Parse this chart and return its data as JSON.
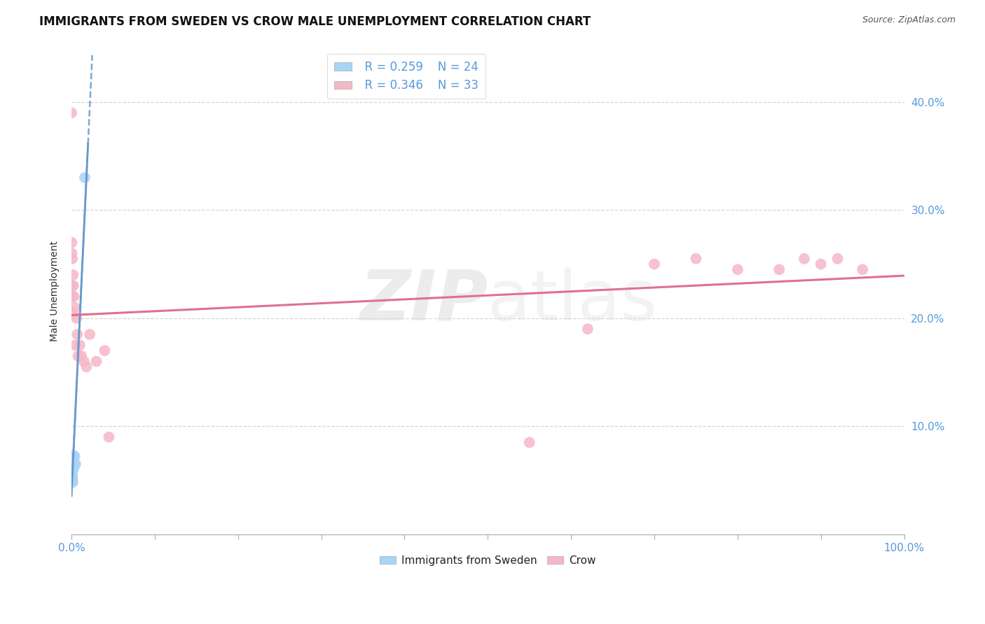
{
  "title": "IMMIGRANTS FROM SWEDEN VS CROW MALE UNEMPLOYMENT CORRELATION CHART",
  "source": "Source: ZipAtlas.com",
  "ylabel": "Male Unemployment",
  "xlim": [
    0.0,
    1.0
  ],
  "ylim": [
    0.0,
    0.45
  ],
  "grid_color": "#cccccc",
  "background_color": "#ffffff",
  "sweden_color": "#a8d4f5",
  "crow_color": "#f5b8c8",
  "sweden_line_color": "#6699cc",
  "crow_line_color": "#e07090",
  "legend_text_color": "#5599dd",
  "legend_r_sweden": "R = 0.259",
  "legend_n_sweden": "N = 24",
  "legend_r_crow": "R = 0.346",
  "legend_n_crow": "N = 33",
  "title_fontsize": 12,
  "tick_fontsize": 11,
  "ylabel_fontsize": 10,
  "sweden_x": [
    0.0002,
    0.0003,
    0.0004,
    0.0005,
    0.0006,
    0.0007,
    0.0008,
    0.0009,
    0.001,
    0.0011,
    0.0012,
    0.0013,
    0.0015,
    0.0016,
    0.0017,
    0.0018,
    0.002,
    0.0022,
    0.0025,
    0.003,
    0.0035,
    0.004,
    0.005,
    0.016
  ],
  "sweden_y": [
    0.068,
    0.065,
    0.063,
    0.061,
    0.059,
    0.057,
    0.055,
    0.054,
    0.053,
    0.052,
    0.051,
    0.05,
    0.048,
    0.07,
    0.066,
    0.062,
    0.06,
    0.073,
    0.067,
    0.065,
    0.063,
    0.072,
    0.065,
    0.33
  ],
  "crow_x": [
    0.0002,
    0.0004,
    0.0006,
    0.0008,
    0.001,
    0.0012,
    0.0015,
    0.002,
    0.0025,
    0.003,
    0.004,
    0.005,
    0.006,
    0.007,
    0.008,
    0.01,
    0.012,
    0.015,
    0.018,
    0.022,
    0.03,
    0.04,
    0.045,
    0.55,
    0.62,
    0.7,
    0.75,
    0.8,
    0.85,
    0.88,
    0.9,
    0.92,
    0.95
  ],
  "crow_y": [
    0.39,
    0.27,
    0.26,
    0.23,
    0.255,
    0.22,
    0.205,
    0.24,
    0.23,
    0.22,
    0.21,
    0.175,
    0.2,
    0.185,
    0.165,
    0.175,
    0.165,
    0.16,
    0.155,
    0.185,
    0.16,
    0.17,
    0.09,
    0.085,
    0.19,
    0.25,
    0.255,
    0.245,
    0.245,
    0.255,
    0.25,
    0.255,
    0.245
  ]
}
